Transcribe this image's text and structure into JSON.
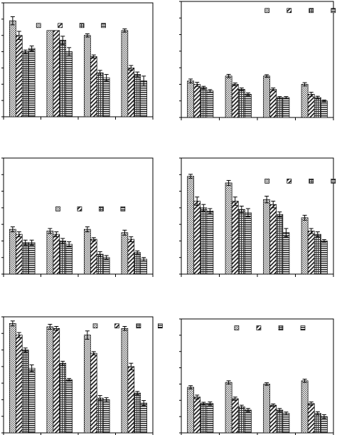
{
  "figure": {
    "layout": "3x2 grid",
    "text_labels_visible": false,
    "bar_fills": [
      "dots",
      "diag",
      "grid",
      "hstripe"
    ],
    "colors": {
      "axis": "#000000",
      "bar_edge": "#000000",
      "fill_dark": "#555555",
      "background": "#ffffff"
    }
  },
  "chart_data": [
    {
      "type": "bar",
      "panel": "top-left",
      "categories": [
        "",
        "",
        "",
        ""
      ],
      "series": [
        {
          "pattern": "dots",
          "values": [
            5.9,
            5.3,
            5.0,
            5.3
          ],
          "error": [
            0.25,
            0.0,
            0.1,
            0.1
          ]
        },
        {
          "pattern": "diag",
          "values": [
            5.0,
            5.3,
            3.7,
            3.0
          ],
          "error": [
            0.25,
            0.0,
            0.1,
            0.15
          ]
        },
        {
          "pattern": "grid",
          "values": [
            4.0,
            4.7,
            2.7,
            2.6
          ],
          "error": [
            0.1,
            0.25,
            0.15,
            0.15
          ]
        },
        {
          "pattern": "hstripe",
          "values": [
            4.2,
            4.0,
            2.4,
            2.2
          ],
          "error": [
            0.15,
            0.25,
            0.2,
            0.3
          ]
        }
      ],
      "ylim": [
        0,
        7
      ],
      "legend": "top-right",
      "legend_pos": [
        0.22,
        0.82
      ],
      "gridlines": false
    },
    {
      "type": "bar",
      "panel": "top-right",
      "categories": [
        "",
        "",
        "",
        ""
      ],
      "series": [
        {
          "pattern": "dots",
          "values": [
            2.2,
            2.5,
            2.5,
            2.0
          ],
          "error": [
            0.12,
            0.1,
            0.08,
            0.1
          ]
        },
        {
          "pattern": "diag",
          "values": [
            2.0,
            2.0,
            1.7,
            1.4
          ],
          "error": [
            0.12,
            0.08,
            0.08,
            0.12
          ]
        },
        {
          "pattern": "grid",
          "values": [
            1.8,
            1.7,
            1.2,
            1.2
          ],
          "error": [
            0.08,
            0.08,
            0.06,
            0.08
          ]
        },
        {
          "pattern": "hstripe",
          "values": [
            1.6,
            1.4,
            1.2,
            1.0
          ],
          "error": [
            0.08,
            0.08,
            0.06,
            0.05
          ]
        }
      ],
      "ylim": [
        0,
        7
      ],
      "legend": "top-right",
      "legend_pos": [
        0.55,
        0.94
      ],
      "gridlines": false
    },
    {
      "type": "bar",
      "panel": "middle-left",
      "categories": [
        "",
        "",
        "",
        ""
      ],
      "series": [
        {
          "pattern": "dots",
          "values": [
            2.7,
            2.6,
            2.7,
            2.5
          ],
          "error": [
            0.15,
            0.15,
            0.15,
            0.15
          ]
        },
        {
          "pattern": "diag",
          "values": [
            2.4,
            2.4,
            2.1,
            2.1
          ],
          "error": [
            0.15,
            0.15,
            0.1,
            0.15
          ]
        },
        {
          "pattern": "grid",
          "values": [
            1.9,
            2.0,
            1.2,
            1.3
          ],
          "error": [
            0.15,
            0.15,
            0.15,
            0.1
          ]
        },
        {
          "pattern": "hstripe",
          "values": [
            1.9,
            1.8,
            1.0,
            0.9
          ],
          "error": [
            0.15,
            0.15,
            0.12,
            0.1
          ]
        }
      ],
      "ylim": [
        0,
        7
      ],
      "legend": "top-right",
      "legend_pos": [
        0.35,
        0.58
      ],
      "gridlines": false
    },
    {
      "type": "bar",
      "panel": "middle-right",
      "categories": [
        "",
        "",
        "",
        ""
      ],
      "series": [
        {
          "pattern": "dots",
          "values": [
            5.9,
            5.5,
            4.5,
            3.4
          ],
          "error": [
            0.12,
            0.15,
            0.2,
            0.15
          ]
        },
        {
          "pattern": "diag",
          "values": [
            4.4,
            4.4,
            4.2,
            2.6
          ],
          "error": [
            0.25,
            0.25,
            0.2,
            0.15
          ]
        },
        {
          "pattern": "grid",
          "values": [
            4.0,
            3.9,
            3.6,
            2.4
          ],
          "error": [
            0.2,
            0.2,
            0.15,
            0.15
          ]
        },
        {
          "pattern": "hstripe",
          "values": [
            3.8,
            3.7,
            2.5,
            2.0
          ],
          "error": [
            0.15,
            0.25,
            0.25,
            0.08
          ]
        }
      ],
      "ylim": [
        0,
        7
      ],
      "legend": "top-right",
      "legend_pos": [
        0.55,
        0.82
      ],
      "gridlines": false
    },
    {
      "type": "bar",
      "panel": "bottom-left",
      "categories": [
        "",
        "",
        "",
        ""
      ],
      "series": [
        {
          "pattern": "dots",
          "values": [
            6.6,
            6.4,
            5.9,
            6.3
          ],
          "error": [
            0.15,
            0.15,
            0.25,
            0.12
          ]
        },
        {
          "pattern": "diag",
          "values": [
            5.9,
            6.3,
            4.8,
            4.0
          ],
          "error": [
            0.15,
            0.12,
            0.1,
            0.2
          ]
        },
        {
          "pattern": "grid",
          "values": [
            5.0,
            4.2,
            2.1,
            2.4
          ],
          "error": [
            0.12,
            0.12,
            0.15,
            0.1
          ]
        },
        {
          "pattern": "hstripe",
          "values": [
            3.9,
            3.2,
            2.0,
            1.8
          ],
          "error": [
            0.2,
            0.08,
            0.12,
            0.15
          ]
        }
      ],
      "ylim": [
        0,
        7
      ],
      "legend": "top-right",
      "legend_pos": [
        0.6,
        0.94
      ],
      "gridlines": false
    },
    {
      "type": "bar",
      "panel": "bottom-right",
      "categories": [
        "",
        "",
        "",
        ""
      ],
      "series": [
        {
          "pattern": "dots",
          "values": [
            2.8,
            3.1,
            3.0,
            3.2
          ],
          "error": [
            0.1,
            0.1,
            0.08,
            0.1
          ]
        },
        {
          "pattern": "diag",
          "values": [
            2.2,
            2.1,
            1.7,
            1.8
          ],
          "error": [
            0.12,
            0.1,
            0.08,
            0.1
          ]
        },
        {
          "pattern": "grid",
          "values": [
            1.8,
            1.6,
            1.4,
            1.2
          ],
          "error": [
            0.08,
            0.1,
            0.1,
            0.1
          ]
        },
        {
          "pattern": "hstripe",
          "values": [
            1.8,
            1.4,
            1.2,
            1.0
          ],
          "error": [
            0.1,
            0.1,
            0.08,
            0.12
          ]
        }
      ],
      "ylim": [
        0,
        7
      ],
      "legend": "top-right",
      "legend_pos": [
        0.35,
        0.94
      ],
      "gridlines": false
    }
  ]
}
